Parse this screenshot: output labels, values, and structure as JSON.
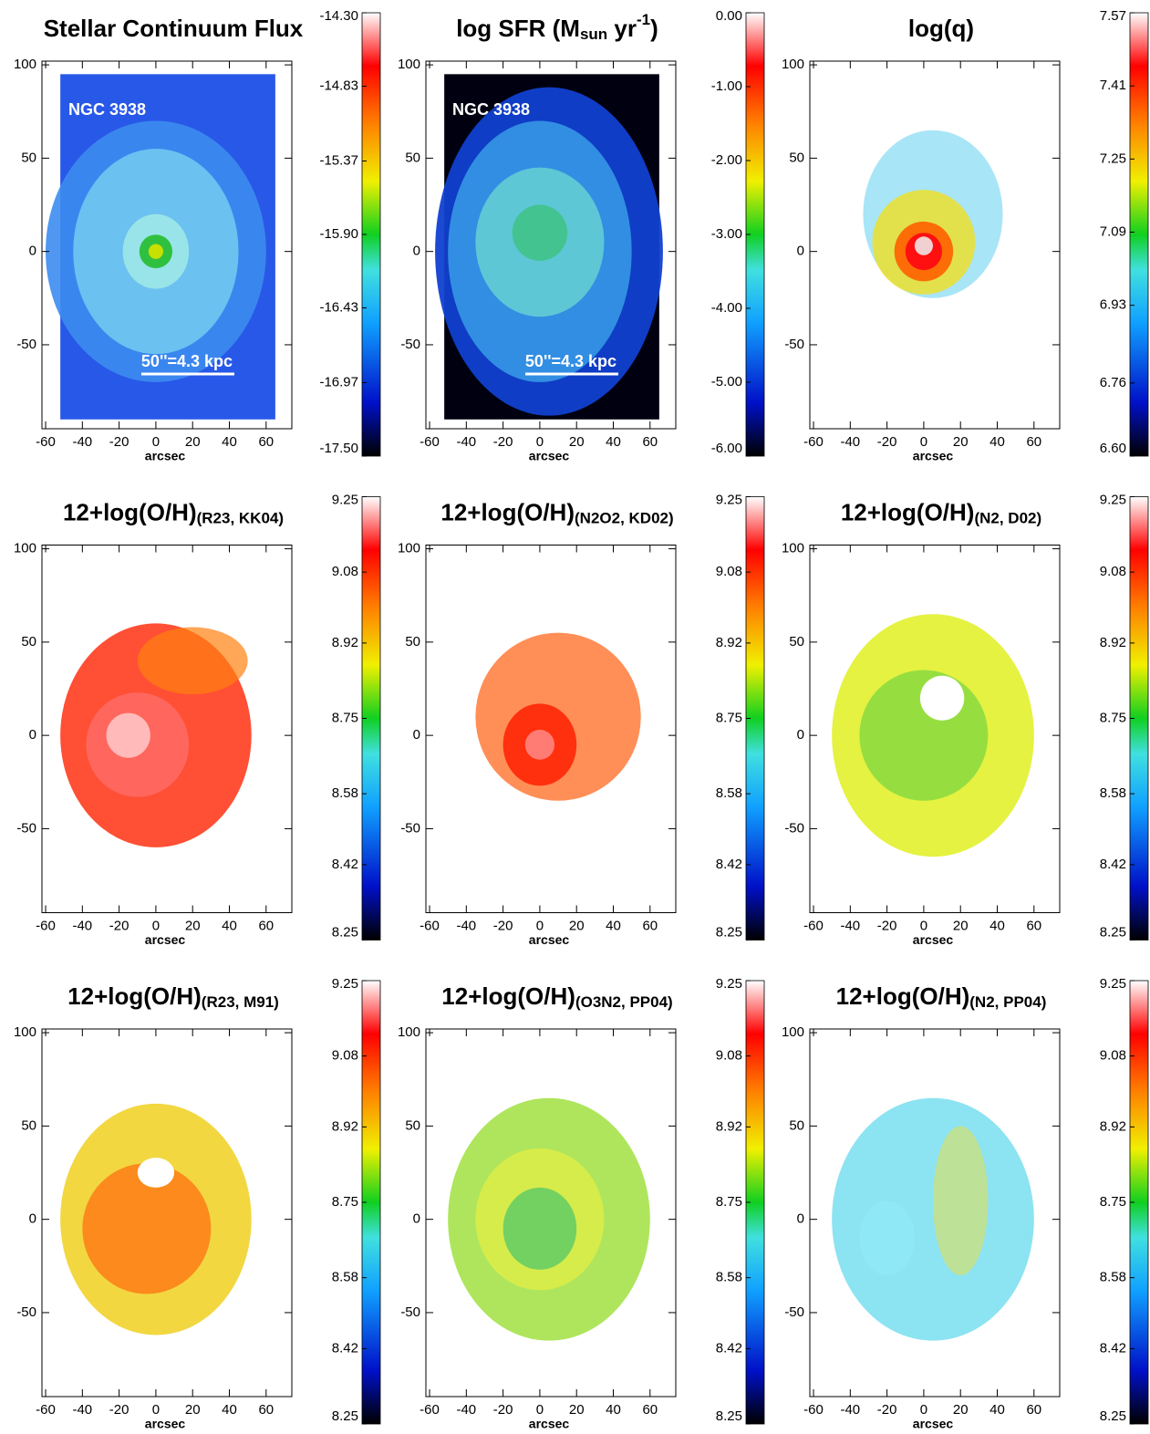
{
  "chart_data": [
    {
      "type": "map",
      "title_parts": [
        {
          "text": "Stellar Continuum Flux"
        }
      ],
      "annotations": [
        "NGC 3938",
        "50''=4.3 kpc"
      ],
      "xlabel": "arcsec",
      "xlim": [
        -62,
        74
      ],
      "xticks": [
        -60,
        -40,
        -20,
        0,
        20,
        40,
        60
      ],
      "ylim": [
        -95,
        102
      ],
      "yticks": [
        -50,
        0,
        50,
        100
      ],
      "clim": [
        -17.5,
        -14.3
      ],
      "cticks": [
        {
          "value": -17.5,
          "label": "-17.50"
        },
        -16.97,
        -16.43,
        {
          "value": -15.9,
          "label": "-15.90"
        },
        -15.37,
        -14.83,
        {
          "value": -14.3,
          "label": "-14.30"
        }
      ]
    },
    {
      "type": "map",
      "title_parts": [
        {
          "text": "log SFR (M"
        },
        {
          "text": "sun",
          "sub": true
        },
        {
          "text": " yr"
        },
        {
          "text": "-1",
          "sup": true
        },
        {
          "text": ")"
        }
      ],
      "annotations": [
        "NGC 3938",
        "50''=4.3 kpc"
      ],
      "xlabel": "arcsec",
      "xlim": [
        -62,
        74
      ],
      "xticks": [
        -60,
        -40,
        -20,
        0,
        20,
        40,
        60
      ],
      "ylim": [
        -95,
        102
      ],
      "yticks": [
        -50,
        0,
        50,
        100
      ],
      "clim": [
        -6,
        0
      ],
      "cticks": [
        {
          "value": -6,
          "label": "-6.00"
        },
        {
          "value": -5,
          "label": "-5.00"
        },
        {
          "value": -4,
          "label": "-4.00"
        },
        {
          "value": -3,
          "label": "-3.00"
        },
        {
          "value": -2,
          "label": "-2.00"
        },
        {
          "value": -1,
          "label": "-1.00"
        },
        {
          "value": 0,
          "label": "0.00"
        }
      ]
    },
    {
      "type": "map",
      "title_parts": [
        {
          "text": "log(q)"
        }
      ],
      "xlabel": "arcsec",
      "xlim": [
        -62,
        74
      ],
      "xticks": [
        -60,
        -40,
        -20,
        0,
        20,
        40,
        60
      ],
      "ylim": [
        -95,
        102
      ],
      "yticks": [
        -50,
        0,
        50,
        100
      ],
      "clim": [
        6.6,
        7.57
      ],
      "cticks": [
        {
          "value": 6.6,
          "label": "6.60"
        },
        6.76,
        6.93,
        7.09,
        7.25,
        7.41,
        7.57
      ]
    },
    {
      "type": "map",
      "title_parts": [
        {
          "text": "12+log(O/H)"
        },
        {
          "text": "(R23, KK04)",
          "sub": true
        }
      ],
      "xlabel": "arcsec",
      "xlim": [
        -62,
        74
      ],
      "xticks": [
        -60,
        -40,
        -20,
        0,
        20,
        40,
        60
      ],
      "ylim": [
        -95,
        102
      ],
      "yticks": [
        -50,
        0,
        50,
        100
      ],
      "clim": [
        8.25,
        9.25
      ],
      "cticks": [
        8.25,
        8.42,
        8.58,
        8.75,
        8.92,
        9.08,
        9.25
      ]
    },
    {
      "type": "map",
      "title_parts": [
        {
          "text": "12+log(O/H)"
        },
        {
          "text": "(N2O2, KD02)",
          "sub": true
        }
      ],
      "xlabel": "arcsec",
      "xlim": [
        -62,
        74
      ],
      "xticks": [
        -60,
        -40,
        -20,
        0,
        20,
        40,
        60
      ],
      "ylim": [
        -95,
        102
      ],
      "yticks": [
        -50,
        0,
        50,
        100
      ],
      "clim": [
        8.25,
        9.25
      ],
      "cticks": [
        8.25,
        8.42,
        8.58,
        8.75,
        8.92,
        9.08,
        9.25
      ]
    },
    {
      "type": "map",
      "title_parts": [
        {
          "text": "12+log(O/H)"
        },
        {
          "text": "(N2, D02)",
          "sub": true
        }
      ],
      "xlabel": "arcsec",
      "xlim": [
        -62,
        74
      ],
      "xticks": [
        -60,
        -40,
        -20,
        0,
        20,
        40,
        60
      ],
      "ylim": [
        -95,
        102
      ],
      "yticks": [
        -50,
        0,
        50,
        100
      ],
      "clim": [
        8.25,
        9.25
      ],
      "cticks": [
        8.25,
        8.42,
        8.58,
        8.75,
        8.92,
        9.08,
        9.25
      ]
    },
    {
      "type": "map",
      "title_parts": [
        {
          "text": "12+log(O/H)"
        },
        {
          "text": "(R23, M91)",
          "sub": true
        }
      ],
      "xlabel": "arcsec",
      "xlim": [
        -62,
        74
      ],
      "xticks": [
        -60,
        -40,
        -20,
        0,
        20,
        40,
        60
      ],
      "ylim": [
        -95,
        102
      ],
      "yticks": [
        -50,
        0,
        50,
        100
      ],
      "clim": [
        8.25,
        9.25
      ],
      "cticks": [
        8.25,
        8.42,
        8.58,
        8.75,
        8.92,
        9.08,
        9.25
      ]
    },
    {
      "type": "map",
      "title_parts": [
        {
          "text": "12+log(O/H)"
        },
        {
          "text": "(O3N2, PP04)",
          "sub": true
        }
      ],
      "xlabel": "arcsec",
      "xlim": [
        -62,
        74
      ],
      "xticks": [
        -60,
        -40,
        -20,
        0,
        20,
        40,
        60
      ],
      "ylim": [
        -95,
        102
      ],
      "yticks": [
        -50,
        0,
        50,
        100
      ],
      "clim": [
        8.25,
        9.25
      ],
      "cticks": [
        8.25,
        8.42,
        8.58,
        8.75,
        8.92,
        9.08,
        9.25
      ]
    },
    {
      "type": "map",
      "title_parts": [
        {
          "text": "12+log(O/H)"
        },
        {
          "text": "(N2, PP04)",
          "sub": true
        }
      ],
      "xlabel": "arcsec",
      "xlim": [
        -62,
        74
      ],
      "xticks": [
        -60,
        -40,
        -20,
        0,
        20,
        40,
        60
      ],
      "ylim": [
        -95,
        102
      ],
      "yticks": [
        -50,
        0,
        50,
        100
      ],
      "clim": [
        8.25,
        9.25
      ],
      "cticks": [
        8.25,
        8.42,
        8.58,
        8.75,
        8.92,
        9.08,
        9.25
      ]
    }
  ]
}
